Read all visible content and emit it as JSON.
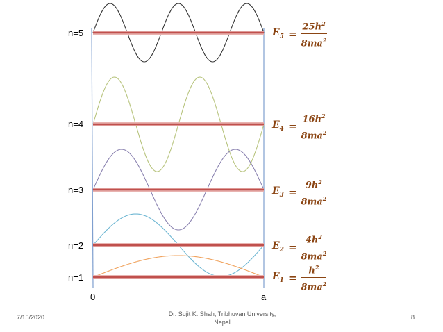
{
  "levels": [
    {
      "label": "n=5",
      "energy": {
        "sub": "5",
        "numerator": "25h",
        "denominator": "8ma"
      },
      "color": "#333333"
    },
    {
      "label": "n=4",
      "energy": {
        "sub": "4",
        "numerator": "16h",
        "denominator": "8ma"
      },
      "color": "#b8c47e"
    },
    {
      "label": "n=3",
      "energy": {
        "sub": "3",
        "numerator": "9h",
        "denominator": "8ma"
      },
      "color": "#8a82b0"
    },
    {
      "label": "n=2",
      "energy": {
        "sub": "2",
        "numerator": "4h",
        "denominator": "8ma"
      },
      "color": "#6fb7d3"
    },
    {
      "label": "n=1",
      "energy": {
        "sub": "1",
        "numerator": "h",
        "denominator": "8ma"
      },
      "color": "#f0a35e"
    }
  ],
  "energy_symbol": "E",
  "power": "2",
  "axis": {
    "left_label": "0",
    "right_label": "a"
  },
  "footer": {
    "date": "7/15/2020",
    "author_line1": "Dr. Sujit K. Shah, Tribhuvan University,",
    "author_line2": "Nepal",
    "page": "8"
  },
  "colors": {
    "level_line": "#c0504d",
    "well_wall": "#7f9fcf",
    "energy_text": "#8B4513"
  }
}
